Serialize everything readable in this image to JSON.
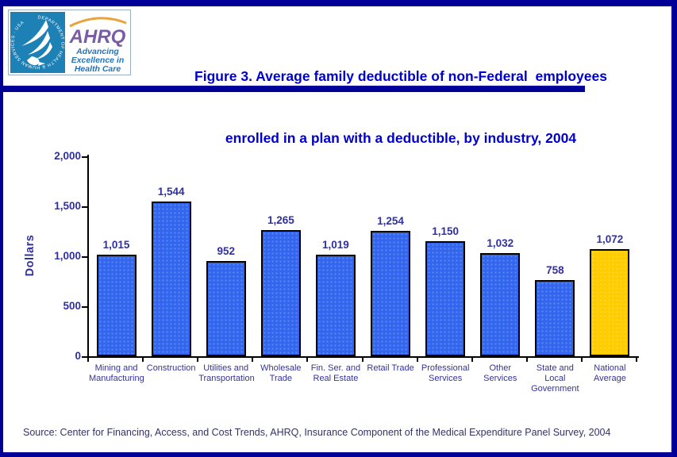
{
  "page": {
    "title_lines": [
      "Figure 3. Average family deductible of non-Federal  employees",
      "enrolled in a plan with a deductible, by industry, 2004"
    ],
    "source": "Source: Center for Financing, Access, and Cost Trends, AHRQ, Insurance Component of the Medical Expenditure Panel Survey, 2004"
  },
  "logo": {
    "seal_text": "DEPARTMENT OF HEALTH & HUMAN SERVICES · USA",
    "acronym": "AHRQ",
    "tagline_lines": [
      "Advancing",
      "Excellence in",
      "Health Care"
    ]
  },
  "chart_data": {
    "type": "bar",
    "title": "Figure 3. Average family deductible of non-Federal employees enrolled in a plan with a deductible, by industry, 2004",
    "xlabel": "",
    "ylabel": "Dollars",
    "ylim": [
      0,
      2000
    ],
    "yticks": [
      0,
      500,
      1000,
      1500,
      2000
    ],
    "ytick_labels": [
      "0",
      "500",
      "1,000",
      "1,500",
      "2,000"
    ],
    "grid": false,
    "legend_position": "none",
    "categories": [
      "Mining and Manufacturing",
      "Construction",
      "Utilities and Transportation",
      "Wholesale Trade",
      "Fin. Ser. and Real Estate",
      "Retail Trade",
      "Professional Services",
      "Other Services",
      "State and Local Government",
      "National Average"
    ],
    "category_label_lines": [
      [
        "Mining and",
        "Manufacturing"
      ],
      [
        "Construction"
      ],
      [
        "Utilities and",
        "Transportation"
      ],
      [
        "Wholesale",
        "Trade"
      ],
      [
        "Fin. Ser. and",
        "Real Estate"
      ],
      [
        "Retail Trade"
      ],
      [
        "Professional",
        "Services"
      ],
      [
        "Other Services"
      ],
      [
        "State and",
        "Local",
        "Government"
      ],
      [
        "National",
        "Average"
      ]
    ],
    "values": [
      1015,
      1544,
      952,
      1265,
      1019,
      1254,
      1150,
      1032,
      758,
      1072
    ],
    "value_labels": [
      "1,015",
      "1,544",
      "952",
      "1,265",
      "1,019",
      "1,254",
      "1,150",
      "1,032",
      "758",
      "1,072"
    ],
    "bar_colors": [
      "#3366EE",
      "#3366EE",
      "#3366EE",
      "#3366EE",
      "#3366EE",
      "#3366EE",
      "#3366EE",
      "#3366EE",
      "#3366EE",
      "#FFCC00"
    ]
  },
  "colors": {
    "frame": "#000099",
    "divider": "#000099",
    "title_text": "#0000CC",
    "axis_text": "#30309E",
    "category_text": "#333399",
    "source_text": "#333366",
    "bar_blue": "#3366EE",
    "bar_gold": "#FFCC00",
    "bar_border": "#000000",
    "logo_teal": "#1E81B5",
    "ahrq_purple": "#7A5CA5",
    "tagline_blue": "#1F75BC",
    "arc_orange": "#E8A33D"
  }
}
